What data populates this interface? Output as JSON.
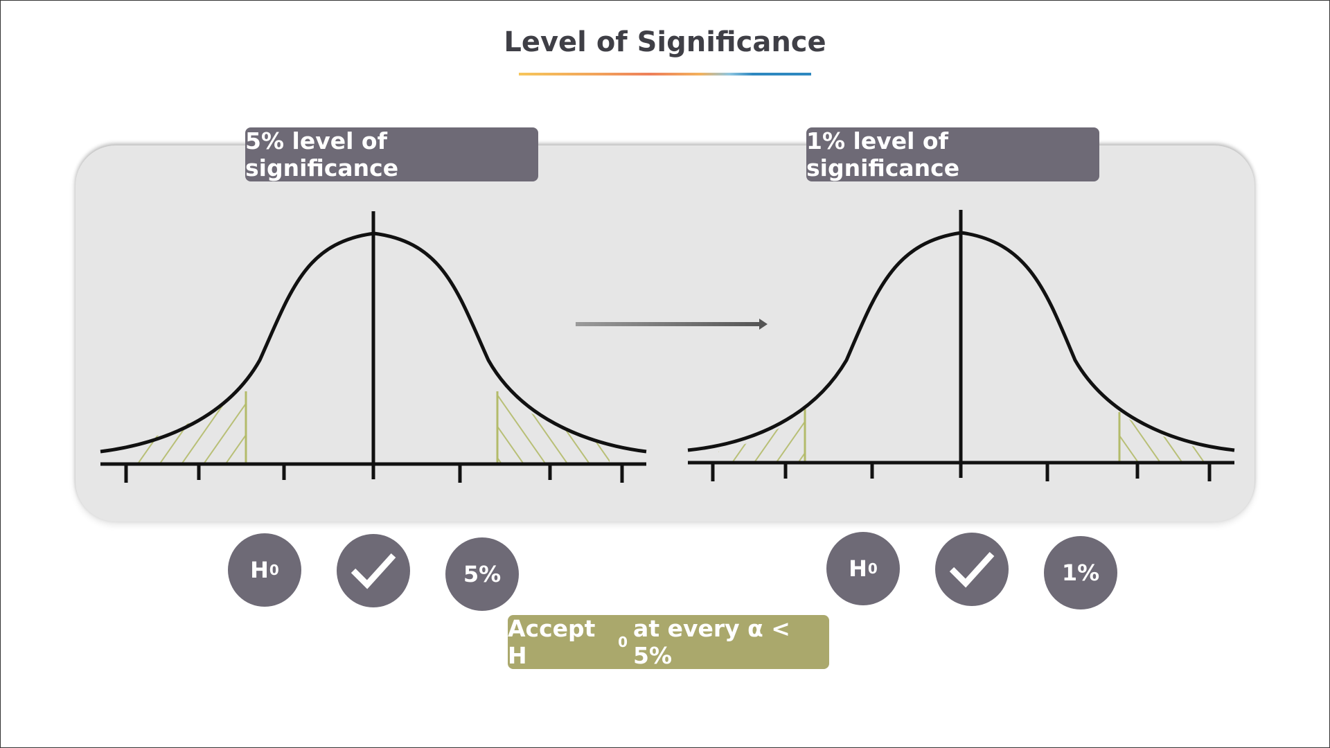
{
  "title": "Level of Significance",
  "left_panel": {
    "label": "5% level of significance"
  },
  "right_panel": {
    "label": "1% level of significance"
  },
  "left_icons": {
    "h": "H",
    "h_sub": "0",
    "percent": "5%"
  },
  "right_icons": {
    "h": "H",
    "h_sub": "0",
    "percent": "1%"
  },
  "accept": {
    "prefix": "Accept H",
    "sub": "0",
    "suffix": "at every α < 5%"
  },
  "colors": {
    "badge": "#6e6a76",
    "accept": "#aaa86c",
    "panel": "#e6e6e6",
    "hatch": "#b3bb6a"
  }
}
